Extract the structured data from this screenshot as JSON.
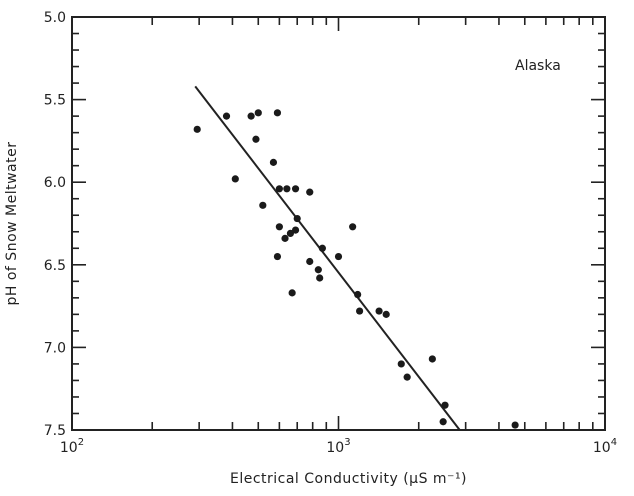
{
  "chart_data": {
    "type": "scatter",
    "title": "",
    "annotation": "Alaska",
    "xlabel": "Electrical Conductivity (μS m⁻¹)",
    "ylabel": "pH of Snow Meltwater",
    "x_scale": "log",
    "xlim": [
      100,
      10000
    ],
    "ylim": [
      5.0,
      7.5
    ],
    "y_inverted": true,
    "grid": false,
    "x_ticks": [
      {
        "value": 100,
        "base": "10",
        "exp": "2"
      },
      {
        "value": 1000,
        "base": "10",
        "exp": "3"
      },
      {
        "value": 10000,
        "base": "10",
        "exp": "4"
      }
    ],
    "y_ticks": [
      {
        "value": 5.0,
        "label": "5.0"
      },
      {
        "value": 5.5,
        "label": "5.5"
      },
      {
        "value": 6.0,
        "label": "6.0"
      },
      {
        "value": 6.5,
        "label": "6.5"
      },
      {
        "value": 7.0,
        "label": "7.0"
      },
      {
        "value": 7.5,
        "label": "7.5"
      }
    ],
    "series": [
      {
        "points": [
          {
            "x": 295,
            "y": 5.68
          },
          {
            "x": 380,
            "y": 5.6
          },
          {
            "x": 470,
            "y": 5.6
          },
          {
            "x": 500,
            "y": 5.58
          },
          {
            "x": 590,
            "y": 5.58
          },
          {
            "x": 490,
            "y": 5.74
          },
          {
            "x": 570,
            "y": 5.88
          },
          {
            "x": 410,
            "y": 5.98
          },
          {
            "x": 600,
            "y": 6.04
          },
          {
            "x": 640,
            "y": 6.04
          },
          {
            "x": 690,
            "y": 6.04
          },
          {
            "x": 780,
            "y": 6.06
          },
          {
            "x": 520,
            "y": 6.14
          },
          {
            "x": 700,
            "y": 6.22
          },
          {
            "x": 1130,
            "y": 6.27
          },
          {
            "x": 600,
            "y": 6.27
          },
          {
            "x": 690,
            "y": 6.29
          },
          {
            "x": 660,
            "y": 6.31
          },
          {
            "x": 630,
            "y": 6.34
          },
          {
            "x": 870,
            "y": 6.4
          },
          {
            "x": 590,
            "y": 6.45
          },
          {
            "x": 1000,
            "y": 6.45
          },
          {
            "x": 780,
            "y": 6.48
          },
          {
            "x": 840,
            "y": 6.53
          },
          {
            "x": 850,
            "y": 6.58
          },
          {
            "x": 670,
            "y": 6.67
          },
          {
            "x": 1180,
            "y": 6.68
          },
          {
            "x": 1200,
            "y": 6.78
          },
          {
            "x": 1420,
            "y": 6.78
          },
          {
            "x": 1510,
            "y": 6.8
          },
          {
            "x": 2250,
            "y": 7.07
          },
          {
            "x": 1720,
            "y": 7.1
          },
          {
            "x": 1810,
            "y": 7.18
          },
          {
            "x": 2510,
            "y": 7.35
          },
          {
            "x": 2470,
            "y": 7.45
          },
          {
            "x": 4600,
            "y": 7.47
          }
        ]
      }
    ],
    "fit_line": [
      {
        "x": 290,
        "y": 5.42
      },
      {
        "x": 2850,
        "y": 7.5
      }
    ]
  }
}
